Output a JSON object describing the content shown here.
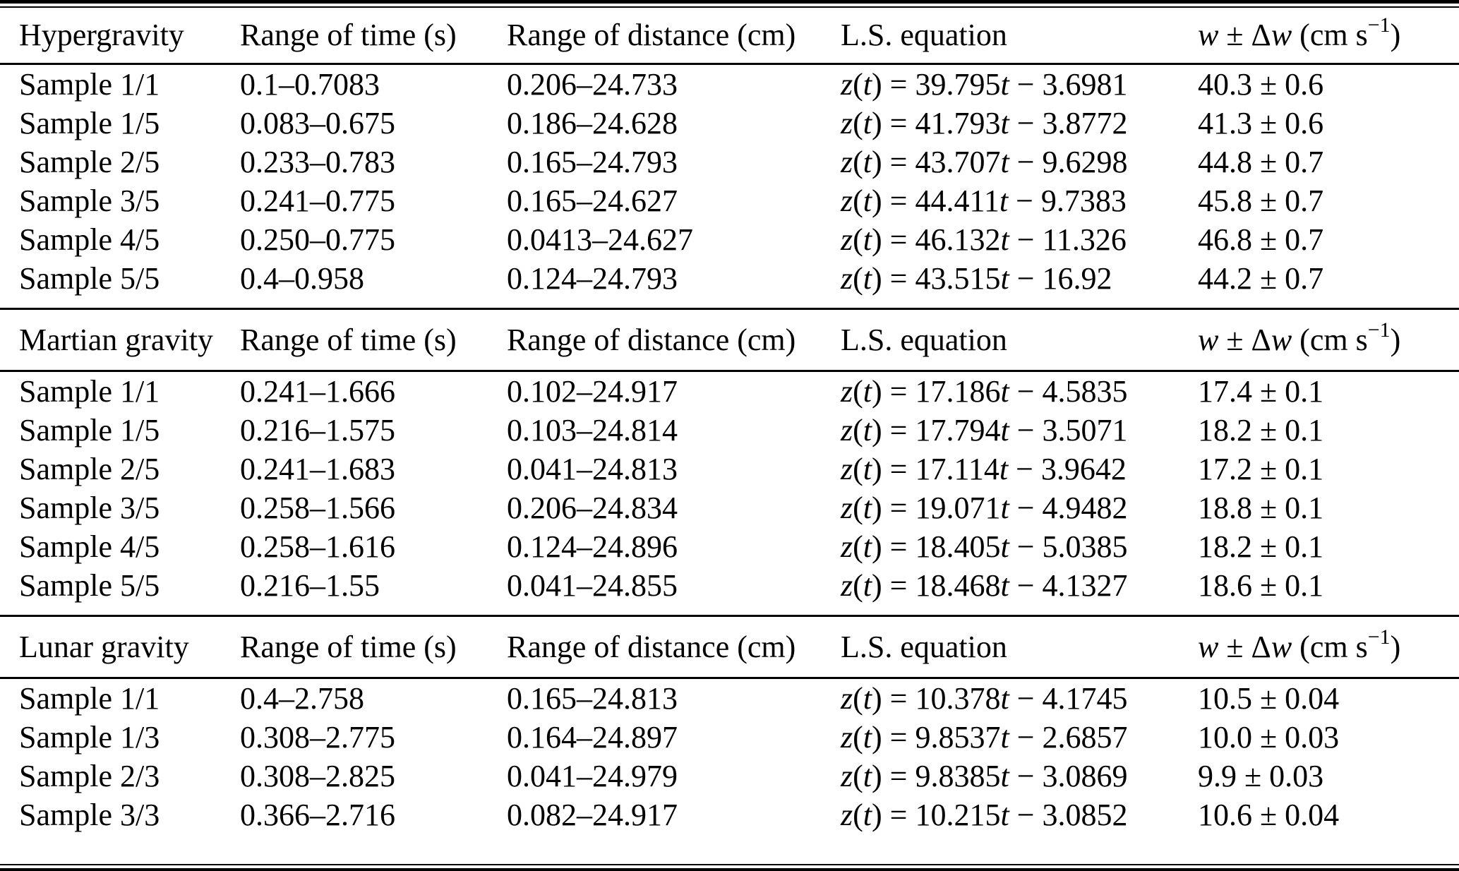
{
  "columns": {
    "time": "Range of time (s)",
    "distance": "Range of distance (cm)",
    "equation": "L.S. equation",
    "w": [
      {
        "t": "w",
        "i": true
      },
      {
        "t": " ± Δ"
      },
      {
        "t": "w",
        "i": true
      },
      {
        "t": " (cm s"
      },
      {
        "t": "−1",
        "sup": true
      },
      {
        "t": ")"
      }
    ]
  },
  "sections": [
    {
      "title": "Hypergravity",
      "rows": [
        {
          "sample": "Sample 1/1",
          "time": "0.1–0.7083",
          "distance": "0.206–24.733",
          "equation": "z(t) = 39.795t − 3.6981",
          "w": "40.3 ± 0.6"
        },
        {
          "sample": "Sample 1/5",
          "time": "0.083–0.675",
          "distance": "0.186–24.628",
          "equation": "z(t) = 41.793t − 3.8772",
          "w": "41.3 ± 0.6"
        },
        {
          "sample": "Sample 2/5",
          "time": "0.233–0.783",
          "distance": "0.165–24.793",
          "equation": "z(t) = 43.707t − 9.6298",
          "w": "44.8 ± 0.7"
        },
        {
          "sample": "Sample 3/5",
          "time": "0.241–0.775",
          "distance": "0.165–24.627",
          "equation": "z(t) = 44.411t − 9.7383",
          "w": "45.8 ± 0.7"
        },
        {
          "sample": "Sample 4/5",
          "time": "0.250–0.775",
          "distance": "0.0413–24.627",
          "equation": "z(t) = 46.132t − 11.326",
          "w": "46.8 ± 0.7"
        },
        {
          "sample": "Sample 5/5",
          "time": "0.4–0.958",
          "distance": "0.124–24.793",
          "equation": "z(t) = 43.515t − 16.92",
          "w": "44.2 ± 0.7"
        }
      ]
    },
    {
      "title": "Martian gravity",
      "rows": [
        {
          "sample": "Sample 1/1",
          "time": "0.241–1.666",
          "distance": "0.102–24.917",
          "equation": "z(t) = 17.186t − 4.5835",
          "w": "17.4 ± 0.1"
        },
        {
          "sample": "Sample 1/5",
          "time": "0.216–1.575",
          "distance": "0.103–24.814",
          "equation": "z(t) = 17.794t − 3.5071",
          "w": "18.2 ± 0.1"
        },
        {
          "sample": "Sample 2/5",
          "time": "0.241–1.683",
          "distance": "0.041–24.813",
          "equation": "z(t) = 17.114t − 3.9642",
          "w": "17.2 ± 0.1"
        },
        {
          "sample": "Sample 3/5",
          "time": "0.258–1.566",
          "distance": "0.206–24.834",
          "equation": "z(t) = 19.071t − 4.9482",
          "w": "18.8 ± 0.1"
        },
        {
          "sample": "Sample 4/5",
          "time": "0.258–1.616",
          "distance": "0.124–24.896",
          "equation": "z(t) = 18.405t − 5.0385",
          "w": "18.2 ± 0.1"
        },
        {
          "sample": "Sample 5/5",
          "time": "0.216–1.55",
          "distance": "0.041–24.855",
          "equation": "z(t) = 18.468t − 4.1327",
          "w": "18.6 ± 0.1"
        }
      ]
    },
    {
      "title": "Lunar gravity",
      "rows": [
        {
          "sample": "Sample 1/1",
          "time": "0.4–2.758",
          "distance": "0.165–24.813",
          "equation": "z(t) = 10.378t − 4.1745",
          "w": "10.5 ± 0.04"
        },
        {
          "sample": "Sample 1/3",
          "time": "0.308–2.775",
          "distance": "0.164–24.897",
          "equation": "z(t) = 9.8537t − 2.6857",
          "w": "10.0 ± 0.03"
        },
        {
          "sample": "Sample 2/3",
          "time": "0.308–2.825",
          "distance": "0.041–24.979",
          "equation": "z(t) = 9.8385t − 3.0869",
          "w": "9.9 ± 0.03"
        },
        {
          "sample": "Sample 3/3",
          "time": "0.366–2.716",
          "distance": "0.082–24.917",
          "equation": "z(t) = 10.215t − 3.0852",
          "w": "10.6 ± 0.04"
        }
      ]
    }
  ]
}
